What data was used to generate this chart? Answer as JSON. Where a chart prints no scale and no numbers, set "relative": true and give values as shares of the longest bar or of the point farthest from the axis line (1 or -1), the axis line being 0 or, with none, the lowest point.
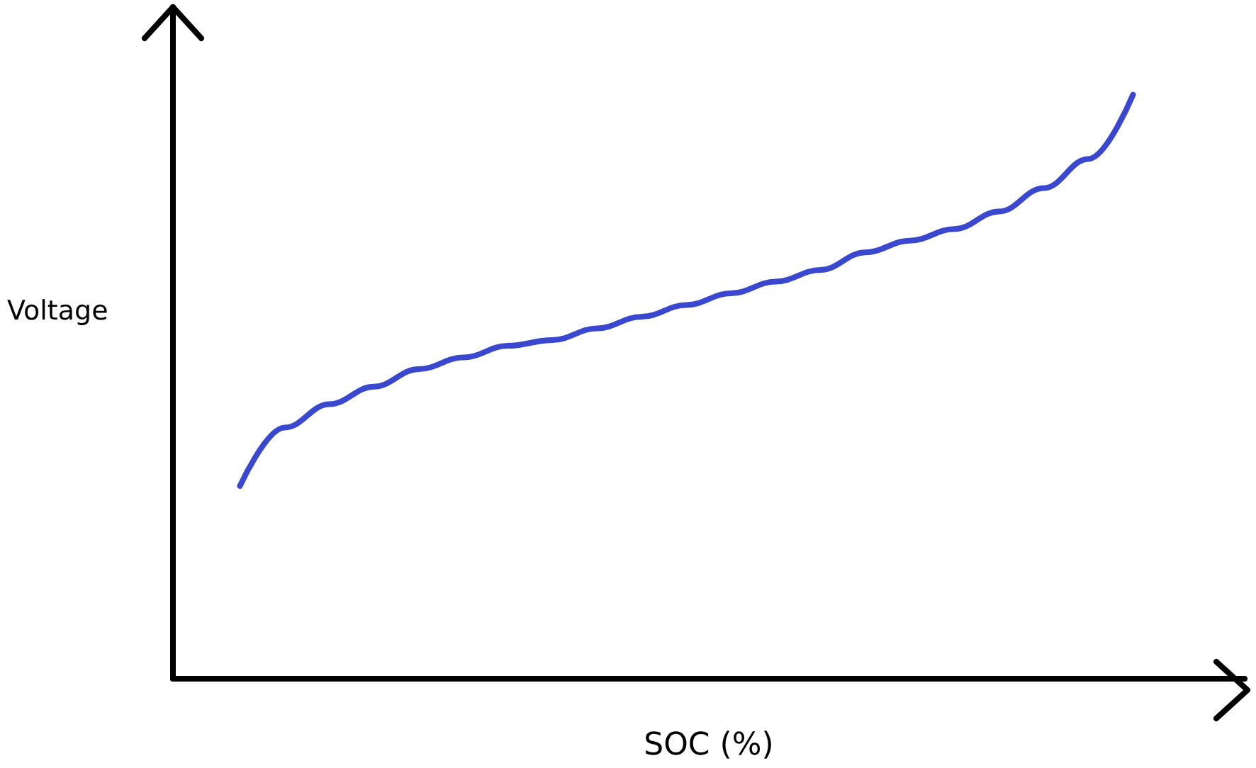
{
  "chart_data": {
    "type": "line",
    "relative": true,
    "xlabel": "SOC (%)",
    "ylabel": "Voltage",
    "categories": [
      null,
      null,
      null,
      null,
      null,
      null,
      null,
      null,
      null,
      null,
      null,
      null,
      null,
      null,
      null,
      null,
      null,
      null,
      null,
      null,
      null,
      null,
      null,
      null
    ],
    "series": [
      {
        "color": "#3a48d0",
        "values": [
          null,
          0.33,
          0.43,
          0.47,
          0.5,
          0.53,
          0.55,
          0.57,
          0.58,
          0.6,
          0.62,
          0.64,
          0.66,
          0.68,
          0.7,
          0.73,
          0.75,
          0.77,
          0.8,
          0.84,
          0.89,
          1,
          null,
          null
        ]
      }
    ],
    "grid": false,
    "marker": "none",
    "line_style": "solid"
  }
}
